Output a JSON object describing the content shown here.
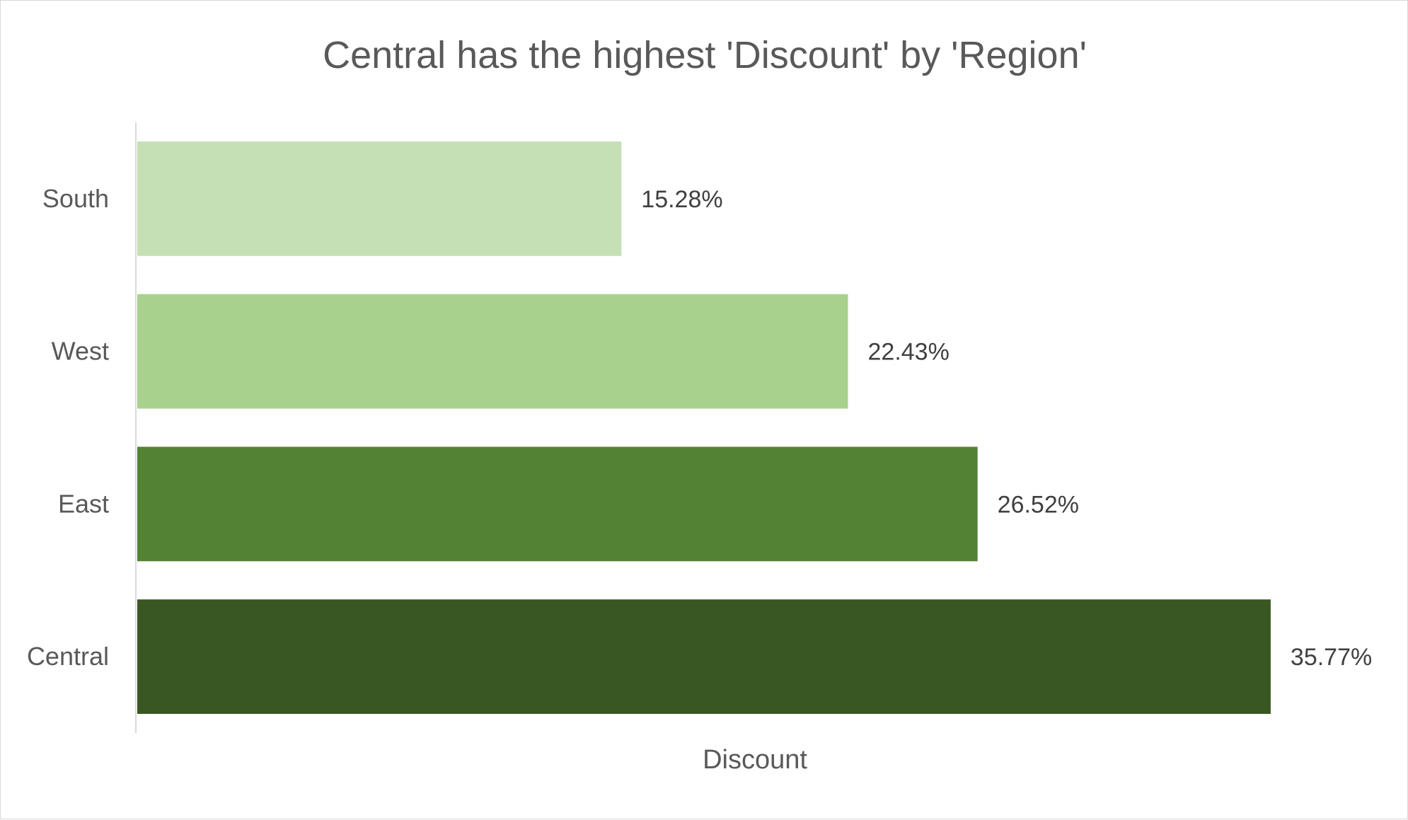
{
  "chart_data": {
    "type": "bar",
    "orientation": "horizontal",
    "title": "Central has the highest 'Discount' by 'Region'",
    "xlabel": "Discount",
    "ylabel": "",
    "categories": [
      "South",
      "West",
      "East",
      "Central"
    ],
    "values": [
      15.28,
      22.43,
      26.52,
      35.77
    ],
    "value_labels": [
      "15.28%",
      "22.43%",
      "26.52%",
      "35.77%"
    ],
    "bar_colors": [
      "#c5e0b4",
      "#a9d18e",
      "#548235",
      "#385723"
    ],
    "xlim": [
      0,
      37
    ],
    "grid": false,
    "legend": "none",
    "data_labels": "outside-end"
  }
}
